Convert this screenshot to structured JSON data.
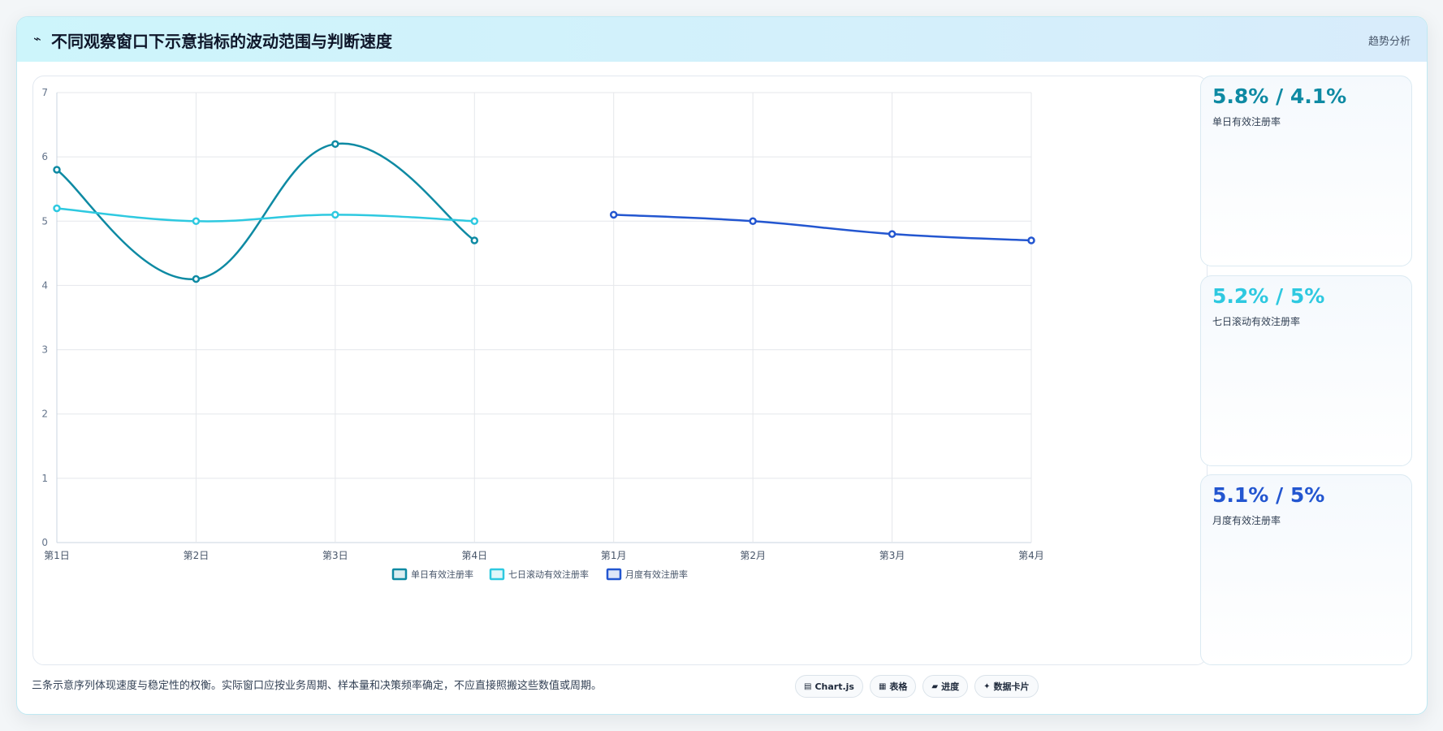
{
  "header": {
    "icon": "trend-icon",
    "title": "不同观察窗口下示意指标的波动范围与判断速度",
    "tag": "趋势分析"
  },
  "kpis": [
    {
      "value": "5.8% / 4.1%",
      "label": "单日有效注册率",
      "color": "#0e8aa3"
    },
    {
      "value": "5.2% / 5%",
      "label": "七日滚动有效注册率",
      "color": "#2ec9e0"
    },
    {
      "value": "5.1% / 5%",
      "label": "月度有效注册率",
      "color": "#2356d0"
    }
  ],
  "footnote": "三条示意序列体现速度与稳定性的权衡。实际窗口应按业务周期、样本量和决策频率确定，不应直接照搬这些数值或周期。",
  "chips": [
    {
      "icon": "chart-icon",
      "glyph": "▤",
      "label": "Chart.js"
    },
    {
      "icon": "table-icon",
      "glyph": "▦",
      "label": "表格"
    },
    {
      "icon": "progress-icon",
      "glyph": "▰",
      "label": "进度"
    },
    {
      "icon": "card-icon",
      "glyph": "✦",
      "label": "数据卡片"
    }
  ],
  "chart_data": {
    "type": "line",
    "categories": [
      "第1日",
      "第2日",
      "第3日",
      "第4日",
      "第1月",
      "第2月",
      "第3月",
      "第4月"
    ],
    "ylim": [
      0,
      7
    ],
    "yticks": [
      0,
      1,
      2,
      3,
      4,
      5,
      6,
      7
    ],
    "grid": true,
    "legend": "bottom",
    "series": [
      {
        "name": "单日有效注册率",
        "color": "#0e8aa3",
        "values": [
          5.8,
          4.1,
          6.2,
          4.7,
          null,
          null,
          null,
          null
        ]
      },
      {
        "name": "七日滚动有效注册率",
        "color": "#2ec9e0",
        "values": [
          5.2,
          5.0,
          5.1,
          5.0,
          null,
          null,
          null,
          null
        ]
      },
      {
        "name": "月度有效注册率",
        "color": "#2356d0",
        "values": [
          null,
          null,
          null,
          null,
          5.1,
          5.0,
          4.8,
          4.7
        ]
      }
    ]
  }
}
